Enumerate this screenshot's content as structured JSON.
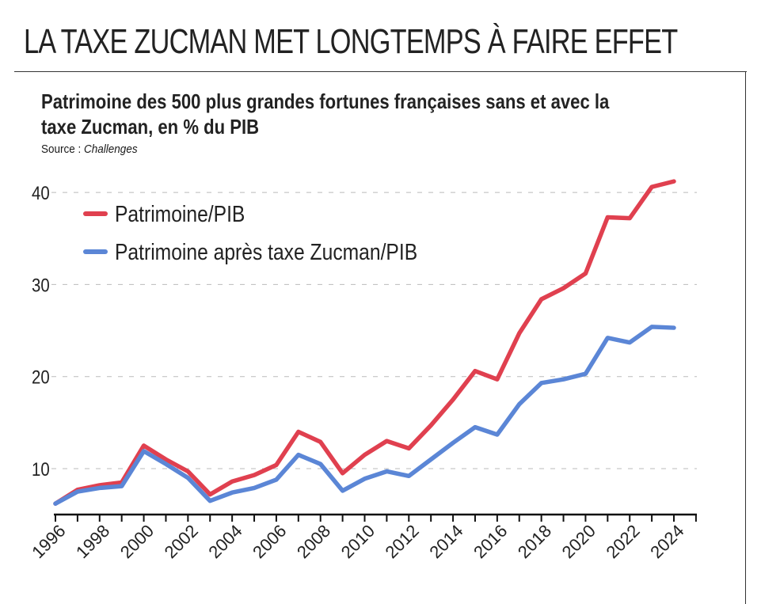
{
  "title": "LA TAXE ZUCMAN MET LONGTEMPS À FAIRE EFFET",
  "subtitle": "Patrimoine des 500 plus grandes fortunes françaises sans et avec la taxe Zucman, en % du PIB",
  "source_label": "Source : ",
  "source_name": "Challenges",
  "chart_data": {
    "type": "line",
    "x": [
      1996,
      1997,
      1998,
      1999,
      2000,
      2001,
      2002,
      2003,
      2004,
      2005,
      2006,
      2007,
      2008,
      2009,
      2010,
      2011,
      2012,
      2013,
      2014,
      2015,
      2016,
      2017,
      2018,
      2019,
      2020,
      2021,
      2022,
      2023,
      2024
    ],
    "x_tick_labels": [
      "1996",
      "1998",
      "2000",
      "2002",
      "2004",
      "2006",
      "2008",
      "2010",
      "2012",
      "2014",
      "2016",
      "2018",
      "2020",
      "2022",
      "2024"
    ],
    "y_ticks": [
      10,
      20,
      30,
      40
    ],
    "ylim": [
      5,
      42
    ],
    "grid": true,
    "legend_position": "top-left",
    "series": [
      {
        "name": "Patrimoine/PIB",
        "color": "#e0404f",
        "values": [
          6.2,
          7.7,
          8.2,
          8.5,
          12.5,
          11,
          9.7,
          7.2,
          8.6,
          9.3,
          10.4,
          14,
          12.9,
          9.5,
          11.5,
          13,
          12.2,
          14.7,
          17.5,
          20.6,
          19.7,
          24.7,
          28.4,
          29.6,
          31.2,
          37.3,
          37.2,
          40.6,
          41.2
        ]
      },
      {
        "name": "Patrimoine après taxe Zucman/PIB",
        "color": "#5b86d6",
        "values": [
          6.2,
          7.5,
          7.9,
          8.1,
          11.9,
          10.5,
          9,
          6.5,
          7.4,
          7.9,
          8.8,
          11.5,
          10.5,
          7.6,
          8.9,
          9.7,
          9.2,
          11,
          12.8,
          14.5,
          13.7,
          17,
          19.3,
          19.7,
          20.3,
          24.2,
          23.7,
          25.4,
          25.3
        ]
      }
    ]
  }
}
